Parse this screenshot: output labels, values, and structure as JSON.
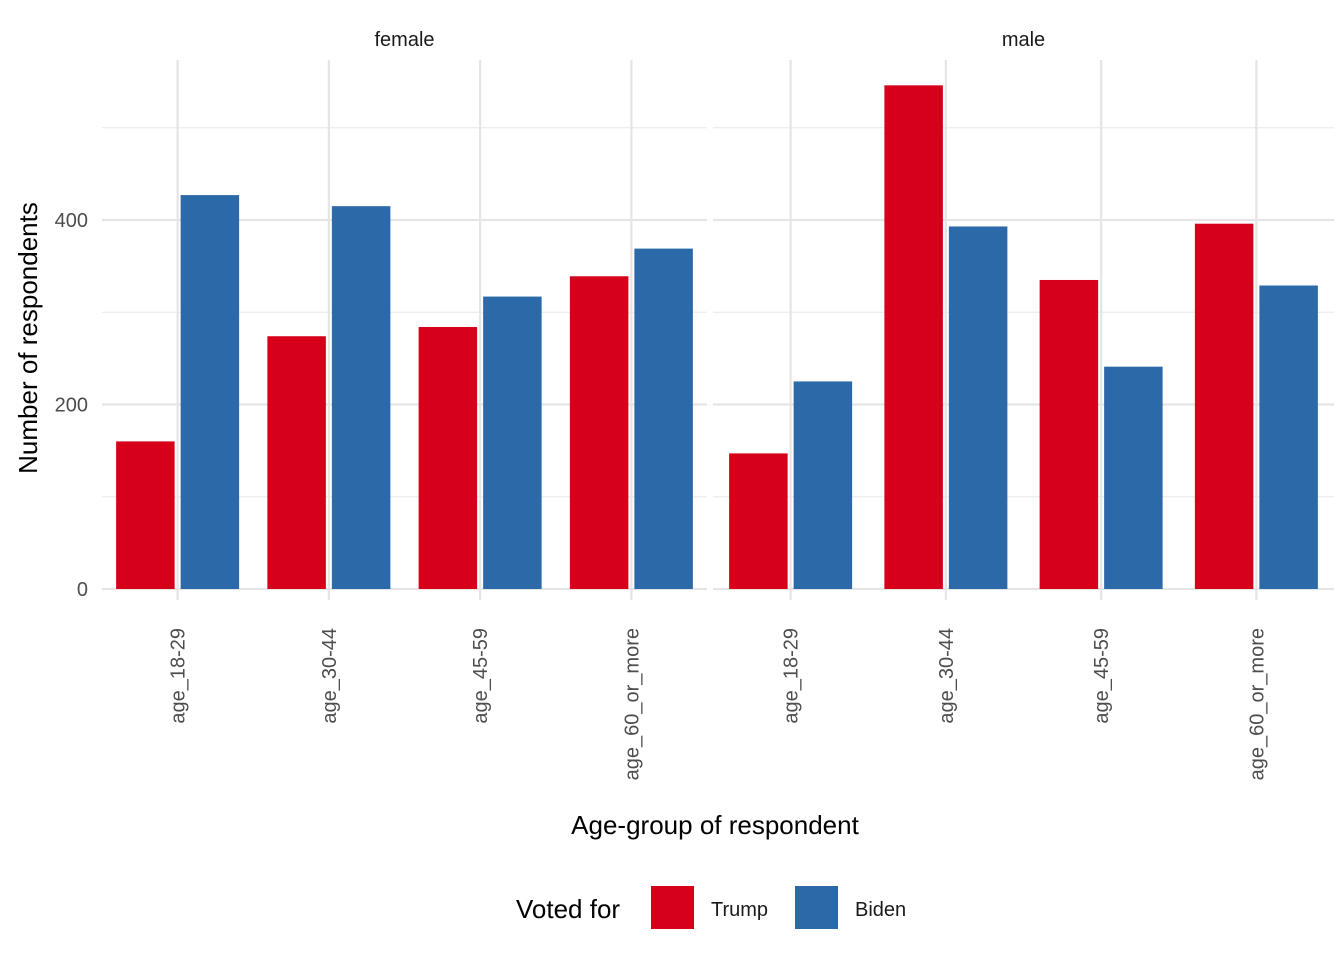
{
  "chart_data": {
    "type": "bar",
    "xlabel": "Age-group of respondent",
    "ylabel": "Number of respondents",
    "ylim": [
      0,
      570
    ],
    "yticks": [
      0,
      200,
      400
    ],
    "grid": true,
    "legend": {
      "title": "Voted for",
      "position": "bottom"
    },
    "categories": [
      "age_18-29",
      "age_30-44",
      "age_45-59",
      "age_60_or_more"
    ],
    "series_colors": {
      "Trump": "#d7001a",
      "Biden": "#2c69a8"
    },
    "facets": [
      {
        "label": "female",
        "series": [
          {
            "name": "Trump",
            "values": [
              160,
              274,
              284,
              339
            ]
          },
          {
            "name": "Biden",
            "values": [
              427,
              415,
              317,
              369
            ]
          }
        ]
      },
      {
        "label": "male",
        "series": [
          {
            "name": "Trump",
            "values": [
              147,
              546,
              335,
              396
            ]
          },
          {
            "name": "Biden",
            "values": [
              225,
              393,
              241,
              329
            ]
          }
        ]
      }
    ]
  }
}
